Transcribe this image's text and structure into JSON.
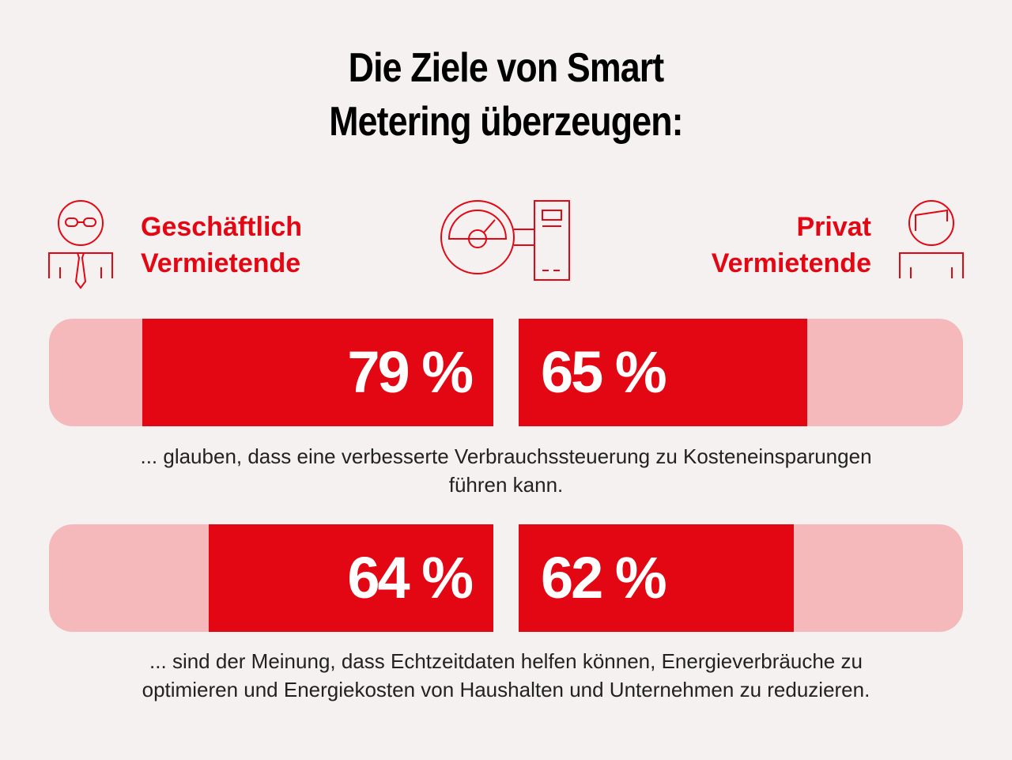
{
  "title": {
    "line1": "Die Ziele von Smart",
    "line2": "Metering überzeugen:"
  },
  "groups": {
    "left": {
      "line1": "Geschäftlich",
      "line2": "Vermietende"
    },
    "right": {
      "line1": "Privat",
      "line2": "Vermietende"
    }
  },
  "icons": {
    "left": "business-person-icon",
    "center": "smart-meter-icon",
    "right": "private-person-icon"
  },
  "colors": {
    "accent": "#e30613",
    "track": "#f5b8bb",
    "background": "#f4f1f0"
  },
  "chart_data": {
    "type": "bar",
    "title": "Die Ziele von Smart Metering überzeugen:",
    "categories": [
      "Geschäftlich Vermietende",
      "Privat Vermietende"
    ],
    "ylim": [
      0,
      100
    ],
    "unit": "%",
    "series": [
      {
        "values": [
          79,
          65
        ],
        "labels": [
          "79 %",
          "65 %"
        ],
        "caption_line1": "... glauben, dass eine verbesserte Verbrauchssteuerung zu Kosteneinsparungen",
        "caption_line2": "führen kann."
      },
      {
        "values": [
          64,
          62
        ],
        "labels": [
          "64 %",
          "62 %"
        ],
        "caption_line1": "... sind der Meinung, dass Echtzeitdaten helfen können, Energieverbräuche zu",
        "caption_line2": "optimieren und Energiekosten von Haushalten und Unternehmen zu reduzieren."
      }
    ]
  }
}
